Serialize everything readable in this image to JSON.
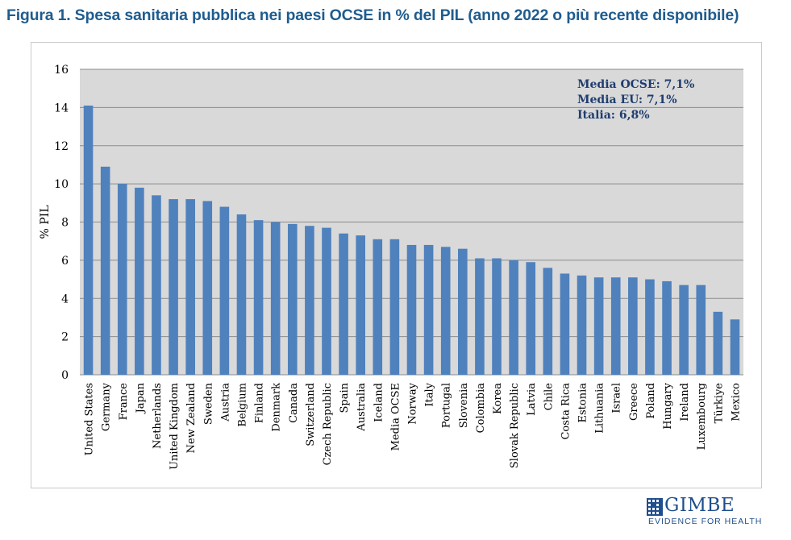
{
  "figure": {
    "title": "Figura 1. Spesa sanitaria pubblica nei paesi OCSE in % del PIL (anno 2022 o più recente disponibile)"
  },
  "colors": {
    "bar": "#4f81bd",
    "plot_bg": "#d9d9d9",
    "grid": "#8c8c8c",
    "annotation": "#1f3d6e",
    "title": "#1f5c8e"
  },
  "chart_data": {
    "type": "bar",
    "title": "",
    "xlabel": "",
    "ylabel": "% PIL",
    "ylim": [
      0,
      16
    ],
    "yticks": [
      0,
      2,
      4,
      6,
      8,
      10,
      12,
      14,
      16
    ],
    "grid": true,
    "categories": [
      "United States",
      "Germany",
      "France",
      "Japan",
      "Netherlands",
      "United Kingdom",
      "New Zealand",
      "Sweden",
      "Austria",
      "Belgium",
      "Finland",
      "Denmark",
      "Canada",
      "Switzerland",
      "Czech Republic",
      "Spain",
      "Australia",
      "Iceland",
      "Media OCSE",
      "Norway",
      "Italy",
      "Portugal",
      "Slovenia",
      "Colombia",
      "Korea",
      "Slovak Republic",
      "Latvia",
      "Chile",
      "Costa Rica",
      "Estonia",
      "Lithuania",
      "Israel",
      "Greece",
      "Poland",
      "Hungary",
      "Ireland",
      "Luxembourg",
      "Türkiye",
      "Mexico"
    ],
    "values": [
      14.1,
      10.9,
      10.0,
      9.8,
      9.4,
      9.2,
      9.2,
      9.1,
      8.8,
      8.4,
      8.1,
      8.0,
      7.9,
      7.8,
      7.7,
      7.4,
      7.3,
      7.1,
      7.1,
      6.8,
      6.8,
      6.7,
      6.6,
      6.1,
      6.1,
      6.0,
      5.9,
      5.6,
      5.3,
      5.2,
      5.1,
      5.1,
      5.1,
      5.0,
      4.9,
      4.7,
      4.7,
      3.3,
      2.9
    ],
    "annotations": [
      "Media OCSE: 7,1%",
      "Media EU: 7,1%",
      "Italia: 6,8%"
    ]
  },
  "logo": {
    "name": "GIMBE",
    "tagline": "EVIDENCE FOR HEALTH"
  }
}
